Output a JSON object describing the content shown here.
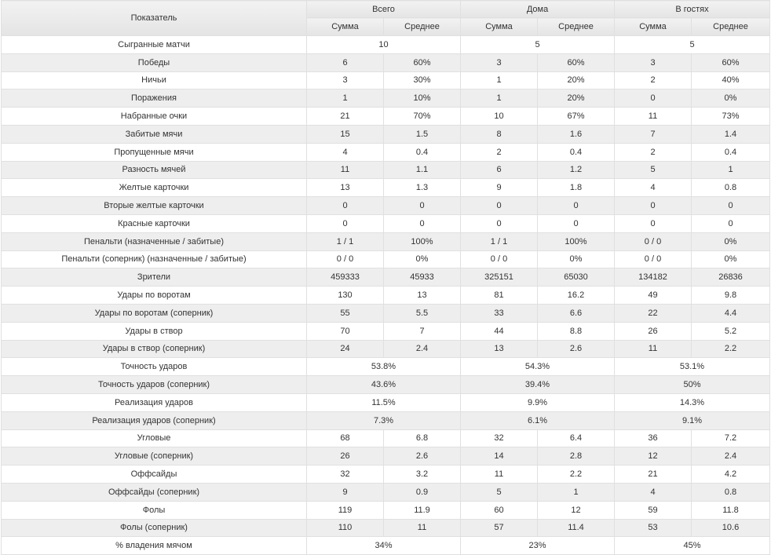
{
  "table": {
    "header": {
      "indicator": "Показатель",
      "groups": [
        "Всего",
        "Дома",
        "В гостях"
      ],
      "sum": "Сумма",
      "avg": "Среднее"
    },
    "rows": [
      {
        "label": "Сыгранные матчи",
        "merged": [
          "10",
          "5",
          "5"
        ]
      },
      {
        "label": "Победы",
        "values": [
          "6",
          "60%",
          "3",
          "60%",
          "3",
          "60%"
        ]
      },
      {
        "label": "Ничьи",
        "values": [
          "3",
          "30%",
          "1",
          "20%",
          "2",
          "40%"
        ]
      },
      {
        "label": "Поражения",
        "values": [
          "1",
          "10%",
          "1",
          "20%",
          "0",
          "0%"
        ]
      },
      {
        "label": "Набранные очки",
        "values": [
          "21",
          "70%",
          "10",
          "67%",
          "11",
          "73%"
        ]
      },
      {
        "label": "Забитые мячи",
        "values": [
          "15",
          "1.5",
          "8",
          "1.6",
          "7",
          "1.4"
        ]
      },
      {
        "label": "Пропущенные мячи",
        "values": [
          "4",
          "0.4",
          "2",
          "0.4",
          "2",
          "0.4"
        ]
      },
      {
        "label": "Разность мячей",
        "values": [
          "11",
          "1.1",
          "6",
          "1.2",
          "5",
          "1"
        ]
      },
      {
        "label": "Желтые карточки",
        "values": [
          "13",
          "1.3",
          "9",
          "1.8",
          "4",
          "0.8"
        ]
      },
      {
        "label": "Вторые желтые карточки",
        "values": [
          "0",
          "0",
          "0",
          "0",
          "0",
          "0"
        ]
      },
      {
        "label": "Красные карточки",
        "values": [
          "0",
          "0",
          "0",
          "0",
          "0",
          "0"
        ]
      },
      {
        "label": "Пенальти (назначенные / забитые)",
        "values": [
          "1 / 1",
          "100%",
          "1 / 1",
          "100%",
          "0 / 0",
          "0%"
        ]
      },
      {
        "label": "Пенальти (соперник) (назначенные / забитые)",
        "values": [
          "0 / 0",
          "0%",
          "0 / 0",
          "0%",
          "0 / 0",
          "0%"
        ]
      },
      {
        "label": "Зрители",
        "values": [
          "459333",
          "45933",
          "325151",
          "65030",
          "134182",
          "26836"
        ]
      },
      {
        "label": "Удары по воротам",
        "values": [
          "130",
          "13",
          "81",
          "16.2",
          "49",
          "9.8"
        ]
      },
      {
        "label": "Удары по воротам (соперник)",
        "values": [
          "55",
          "5.5",
          "33",
          "6.6",
          "22",
          "4.4"
        ]
      },
      {
        "label": "Удары в створ",
        "values": [
          "70",
          "7",
          "44",
          "8.8",
          "26",
          "5.2"
        ]
      },
      {
        "label": "Удары в створ (соперник)",
        "values": [
          "24",
          "2.4",
          "13",
          "2.6",
          "11",
          "2.2"
        ]
      },
      {
        "label": "Точность ударов",
        "merged": [
          "53.8%",
          "54.3%",
          "53.1%"
        ]
      },
      {
        "label": "Точность ударов (соперник)",
        "merged": [
          "43.6%",
          "39.4%",
          "50%"
        ]
      },
      {
        "label": "Реализация ударов",
        "merged": [
          "11.5%",
          "9.9%",
          "14.3%"
        ]
      },
      {
        "label": "Реализация ударов (соперник)",
        "merged": [
          "7.3%",
          "6.1%",
          "9.1%"
        ]
      },
      {
        "label": "Угловые",
        "values": [
          "68",
          "6.8",
          "32",
          "6.4",
          "36",
          "7.2"
        ]
      },
      {
        "label": "Угловые (соперник)",
        "values": [
          "26",
          "2.6",
          "14",
          "2.8",
          "12",
          "2.4"
        ]
      },
      {
        "label": "Оффсайды",
        "values": [
          "32",
          "3.2",
          "11",
          "2.2",
          "21",
          "4.2"
        ]
      },
      {
        "label": "Оффсайды (соперник)",
        "values": [
          "9",
          "0.9",
          "5",
          "1",
          "4",
          "0.8"
        ]
      },
      {
        "label": "Фолы",
        "values": [
          "119",
          "11.9",
          "60",
          "12",
          "59",
          "11.8"
        ]
      },
      {
        "label": "Фолы (соперник)",
        "values": [
          "110",
          "11",
          "57",
          "11.4",
          "53",
          "10.6"
        ]
      },
      {
        "label": "% владения мячом",
        "merged": [
          "34%",
          "23%",
          "45%"
        ]
      }
    ]
  }
}
